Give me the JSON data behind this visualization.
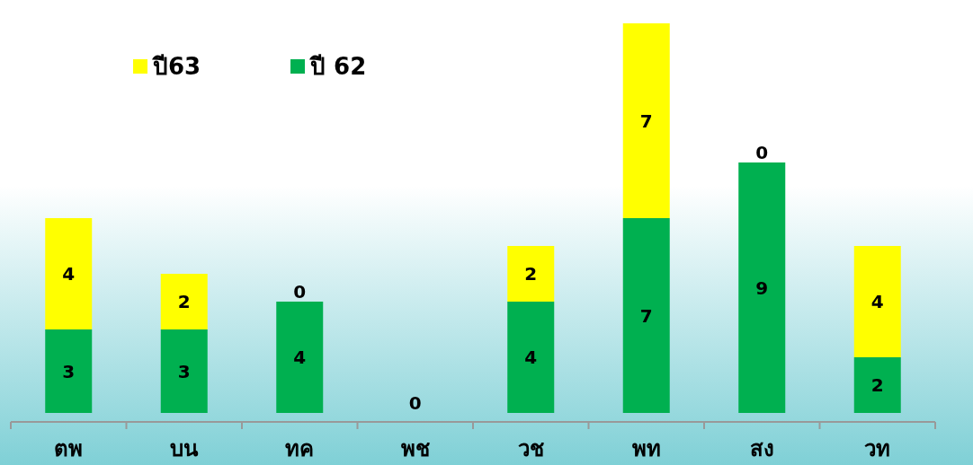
{
  "chart_data": {
    "type": "bar",
    "stacked": true,
    "legend": "top left",
    "categories": [
      "ตพ",
      "บน",
      "ทค",
      "พช",
      "วช",
      "พท",
      "สง",
      "วท"
    ],
    "series": [
      {
        "name": "ปี 62",
        "color": "#00b050",
        "values": [
          3,
          3,
          4,
          0,
          4,
          7,
          9,
          2
        ],
        "value_labels": [
          "3",
          "3",
          "4",
          null,
          "4",
          "7",
          "9",
          "2"
        ]
      },
      {
        "name": "ปี63",
        "color": "#ffff00",
        "values": [
          4,
          2,
          0,
          0,
          2,
          7,
          0,
          4
        ],
        "value_labels": [
          "4",
          "2",
          "0",
          "0",
          "2",
          "7",
          "0",
          "4"
        ]
      }
    ]
  }
}
